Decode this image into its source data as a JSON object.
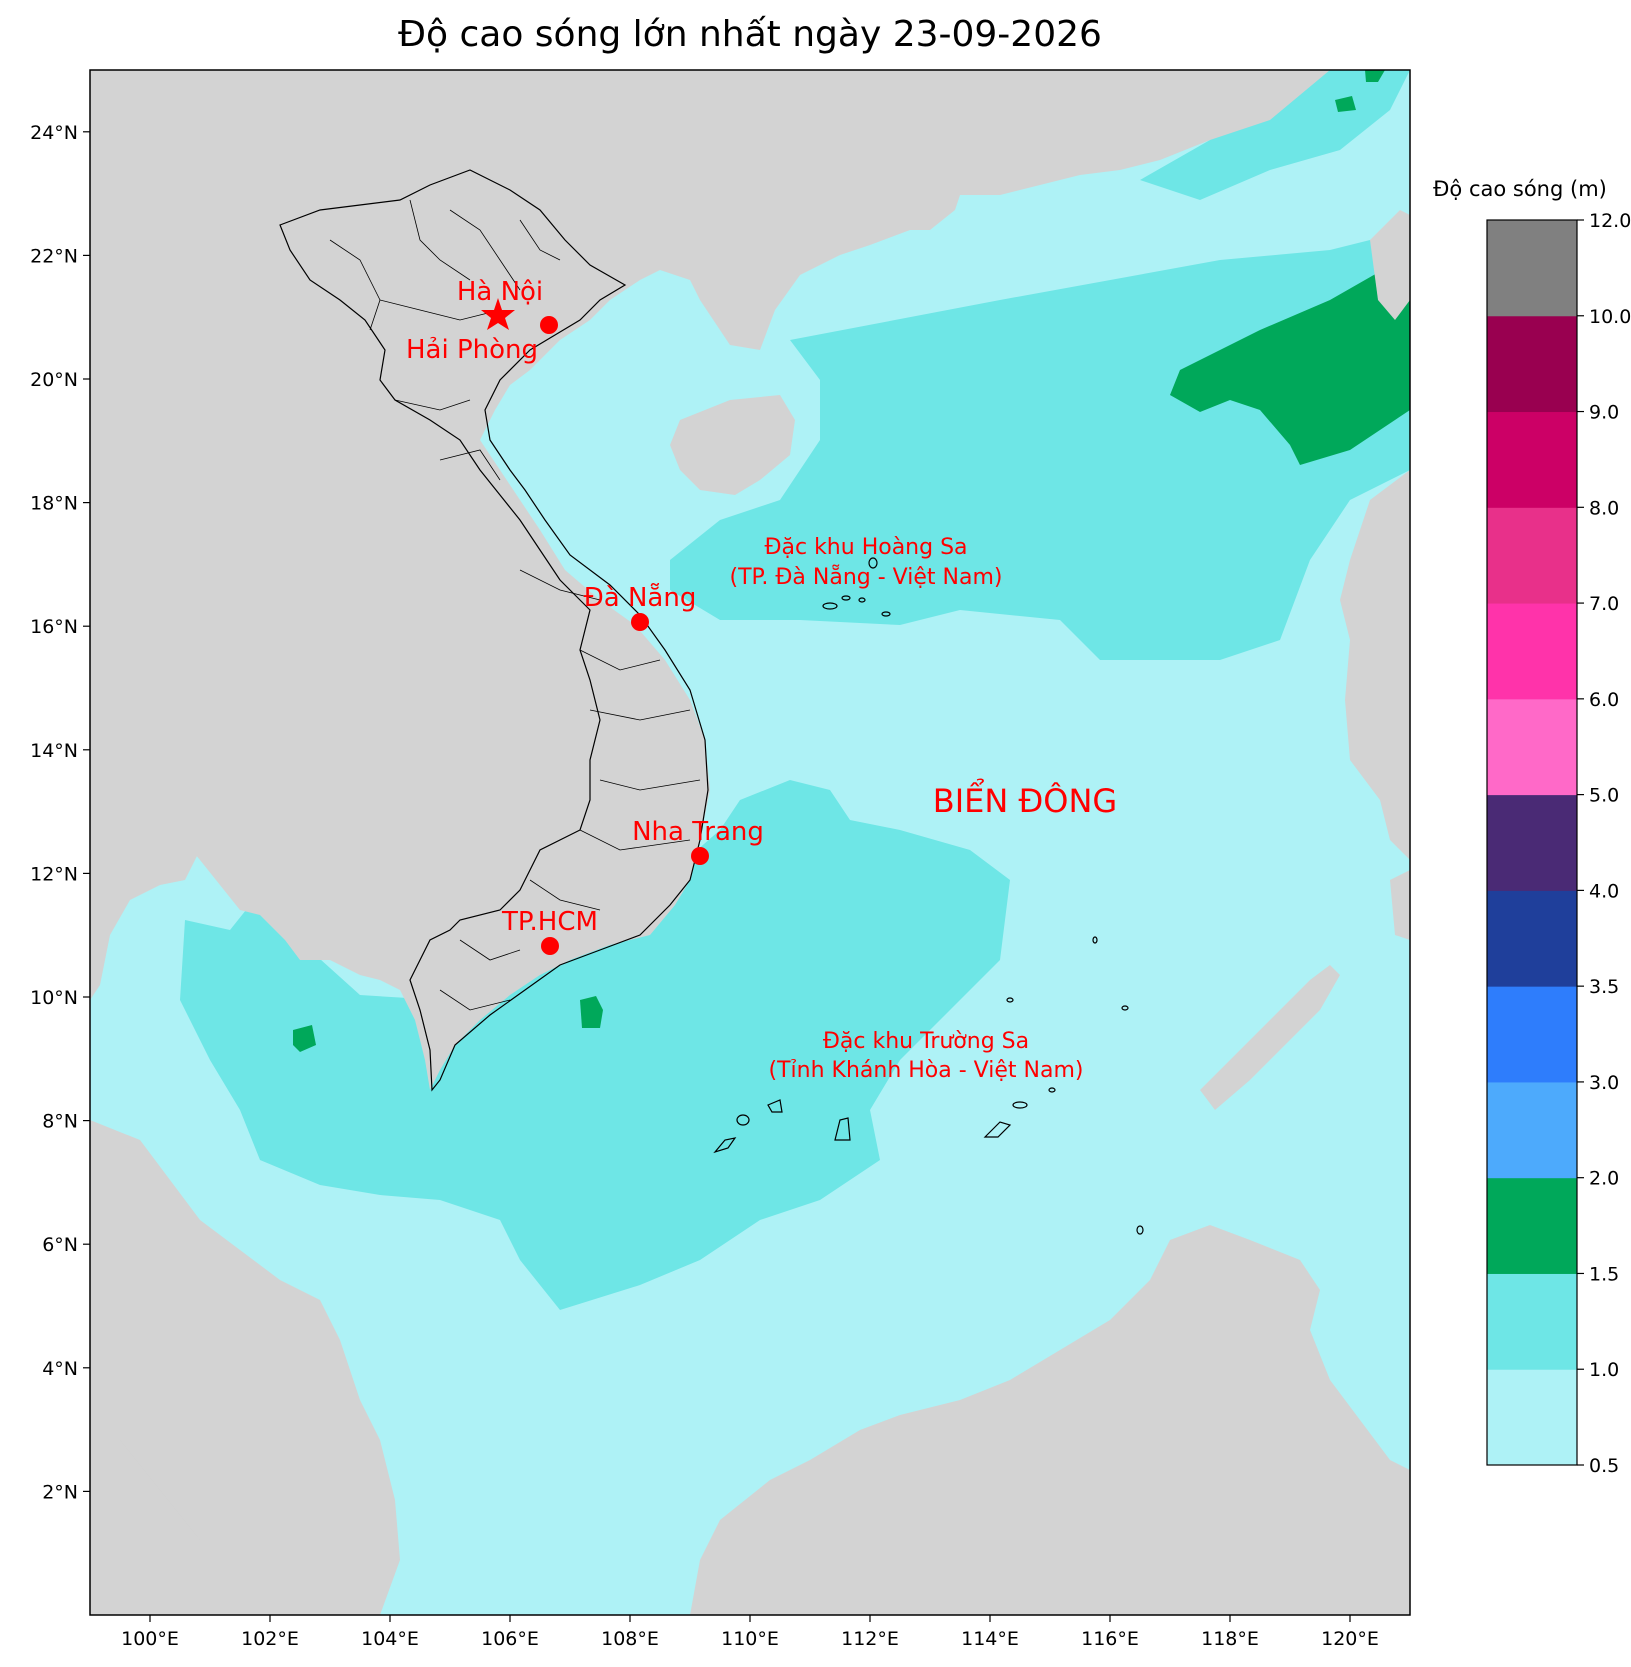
{
  "title": "Độ cao sóng lớn nhất ngày 23-09-2026",
  "map": {
    "lon_range": [
      99,
      121
    ],
    "lat_range": [
      0,
      25
    ],
    "x_ticks": [
      "100°E",
      "102°E",
      "104°E",
      "106°E",
      "108°E",
      "110°E",
      "112°E",
      "114°E",
      "116°E",
      "118°E",
      "120°E"
    ],
    "y_ticks": [
      "2°N",
      "4°N",
      "6°N",
      "8°N",
      "10°N",
      "12°N",
      "14°N",
      "16°N",
      "18°N",
      "20°N",
      "22°N",
      "24°N"
    ],
    "colors": {
      "land": "#d3d3d3",
      "sea_0_5_1": "#aef2f6",
      "sea_1_1_5": "#6ee6e6",
      "sea_1_5_2": "#00a85a",
      "marker": "#ff0000"
    },
    "cities": [
      {
        "name": "Hà Nội",
        "symbol": "star"
      },
      {
        "name": "Hải Phòng",
        "symbol": "circle"
      },
      {
        "name": "Đà Nẵng",
        "symbol": "circle"
      },
      {
        "name": "Nha Trang",
        "symbol": "circle"
      },
      {
        "name": "TP.HCM",
        "symbol": "circle"
      }
    ],
    "annotations": {
      "hoang_sa_line1": "Đặc khu Hoàng Sa",
      "hoang_sa_line2": "(TP. Đà Nẵng - Việt Nam)",
      "truong_sa_line1": "Đặc khu Trường Sa",
      "truong_sa_line2": "(Tỉnh Khánh Hòa - Việt Nam)",
      "sea_name": "BIỂN ĐÔNG"
    }
  },
  "colorbar": {
    "title": "Độ cao sóng (m)",
    "bounds": [
      "0.5",
      "1.0",
      "1.5",
      "2.0",
      "3.0",
      "3.5",
      "4.0",
      "5.0",
      "6.0",
      "7.0",
      "8.0",
      "9.0",
      "10.0",
      "12.0"
    ],
    "colors": [
      "#aef2f6",
      "#6ee6e6",
      "#00a85a",
      "#4daafc",
      "#2e7dfc",
      "#1f3f9b",
      "#4a2a75",
      "#ff69c8",
      "#ff33aa",
      "#e8308a",
      "#cc0066",
      "#990050",
      "#808080"
    ]
  }
}
